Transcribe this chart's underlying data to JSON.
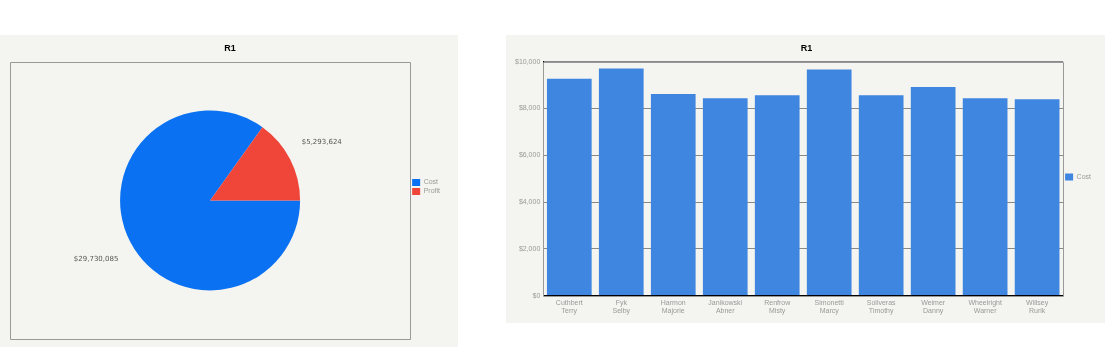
{
  "chart_data": [
    {
      "type": "pie",
      "title": "R1",
      "categories": [
        "Cost",
        "Profit"
      ],
      "values": [
        29730085,
        5293624
      ],
      "colors": [
        "#0a72f2",
        "#f0463a"
      ],
      "value_labels": [
        "$29,730,085",
        "$5,293,624"
      ],
      "legend": "right"
    },
    {
      "type": "bar",
      "title": "R1",
      "categories": [
        "Cuthbert Terry",
        "Fyk Selby",
        "Harmon Majorie",
        "Janikowski Abner",
        "Renfrow Misty",
        "Simonetti Marcy",
        "Soliveras Timothy",
        "Weimer Danny",
        "Wheelright Warner",
        "Willsey Rurik"
      ],
      "series": [
        {
          "name": "Cost",
          "color": "#3f86e0",
          "values": [
            9270,
            9710,
            8620,
            8440,
            8570,
            9670,
            8570,
            8920,
            8440,
            8400
          ]
        }
      ],
      "ylim": [
        0,
        10000
      ],
      "yticks": [
        {
          "value": 0,
          "label": "$0"
        },
        {
          "value": 2000,
          "label": "$2,000"
        },
        {
          "value": 4000,
          "label": "$4,000"
        },
        {
          "value": 6000,
          "label": "$6,000"
        },
        {
          "value": 8000,
          "label": "$8,000"
        },
        {
          "value": 10000,
          "label": "$10,000"
        }
      ],
      "grid": "y",
      "legend": "right"
    }
  ]
}
